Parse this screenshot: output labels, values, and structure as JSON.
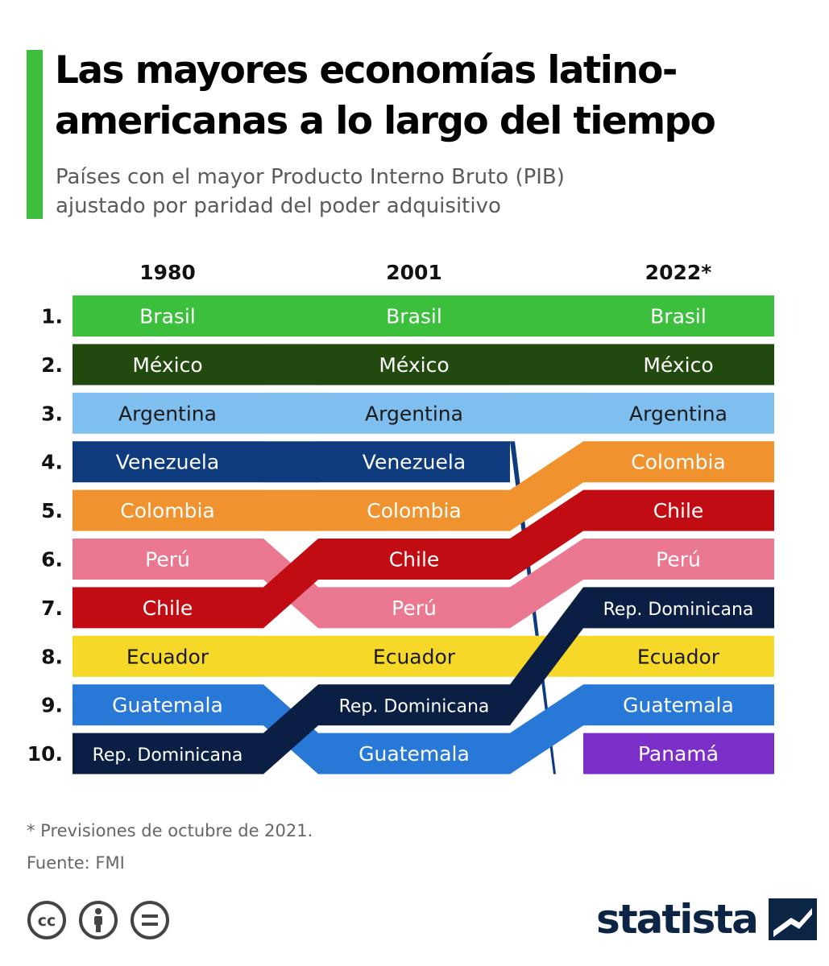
{
  "title": "Las mayores economías latino-americanas a lo largo del tiempo",
  "title_lines": [
    "Las mayores economías latino-",
    "americanas a lo largo del tiempo"
  ],
  "subtitle_lines": [
    "Países con el mayor Producto Interno Bruto (PIB)",
    "ajustado por paridad del poder adquisitivo"
  ],
  "footnote": "* Previsiones de octubre de 2021.",
  "source": "Fuente: FMI",
  "brand": "statista",
  "license_icons": [
    "cc-icon",
    "attribution-icon",
    "no-derivatives-icon"
  ],
  "chart_data": {
    "type": "bump",
    "title": "Las mayores economías latino-americanas a lo largo del tiempo",
    "columns": [
      "1980",
      "2001",
      "2022*"
    ],
    "rank_labels": [
      "1.",
      "2.",
      "3.",
      "4.",
      "5.",
      "6.",
      "7.",
      "8.",
      "9.",
      "10."
    ],
    "series": [
      {
        "name": "Brasil",
        "color": "#3cbf3c",
        "text_color": "#ffffff",
        "ranks": [
          1,
          1,
          1
        ]
      },
      {
        "name": "México",
        "color": "#234a0e",
        "text_color": "#ffffff",
        "ranks": [
          2,
          2,
          2
        ]
      },
      {
        "name": "Argentina",
        "color": "#7ebff0",
        "text_color": "#1a1a1a",
        "ranks": [
          3,
          3,
          3
        ]
      },
      {
        "name": "Venezuela",
        "color": "#0e3a7e",
        "text_color": "#ffffff",
        "ranks": [
          4,
          4,
          null
        ]
      },
      {
        "name": "Colombia",
        "color": "#f0922e",
        "text_color": "#ffffff",
        "ranks": [
          5,
          5,
          4
        ]
      },
      {
        "name": "Perú",
        "color": "#ea7890",
        "text_color": "#ffffff",
        "ranks": [
          6,
          7,
          6
        ]
      },
      {
        "name": "Chile",
        "color": "#c00c12",
        "text_color": "#ffffff",
        "ranks": [
          7,
          6,
          5
        ]
      },
      {
        "name": "Ecuador",
        "color": "#f5d828",
        "text_color": "#1a1a1a",
        "ranks": [
          8,
          8,
          8
        ]
      },
      {
        "name": "Guatemala",
        "color": "#2878d8",
        "text_color": "#ffffff",
        "ranks": [
          9,
          10,
          9
        ]
      },
      {
        "name": "Rep. Dominicana",
        "color": "#0b1f45",
        "text_color": "#ffffff",
        "ranks": [
          10,
          9,
          7
        ]
      },
      {
        "name": "Panamá",
        "color": "#7b2fc8",
        "text_color": "#ffffff",
        "ranks": [
          null,
          null,
          10
        ]
      }
    ]
  }
}
